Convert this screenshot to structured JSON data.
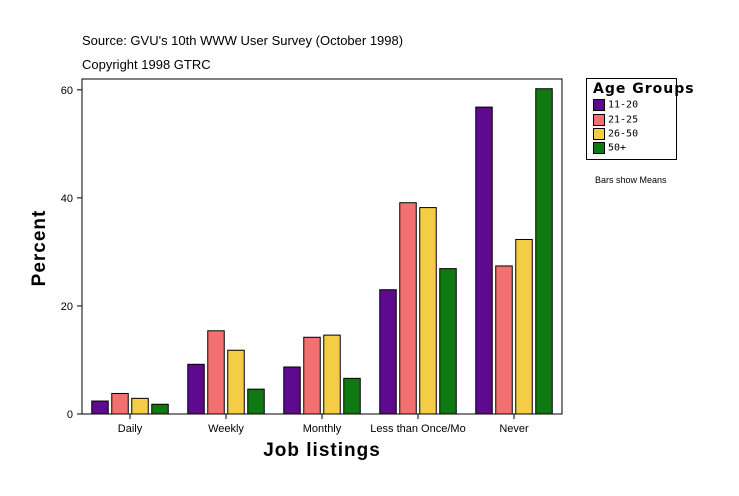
{
  "header": {
    "source": "Source: GVU's 10th WWW User Survey (October 1998)",
    "copyright": "Copyright 1998 GTRC"
  },
  "legend": {
    "title": "Age Groups",
    "items": [
      {
        "label": "11-20",
        "color": "#5e0a8e"
      },
      {
        "label": "21-25",
        "color": "#f27070"
      },
      {
        "label": "26-50",
        "color": "#f5cc45"
      },
      {
        "label": "50+",
        "color": "#107810"
      }
    ]
  },
  "note": "Bars show Means",
  "chart_data": {
    "type": "bar",
    "xlabel": "Job listings",
    "ylabel": "Percent",
    "ylim": [
      0,
      60
    ],
    "yticks": [
      0,
      20,
      40,
      60
    ],
    "categories": [
      "Daily",
      "Weekly",
      "Monthly",
      "Less than Once/Mo",
      "Never"
    ],
    "series": [
      {
        "name": "11-20",
        "color": "#5e0a8e",
        "values": [
          2.4,
          9.2,
          8.7,
          23.0,
          56.8
        ]
      },
      {
        "name": "21-25",
        "color": "#f27070",
        "values": [
          3.8,
          15.4,
          14.2,
          39.1,
          27.4
        ]
      },
      {
        "name": "26-50",
        "color": "#f5cc45",
        "values": [
          2.9,
          11.8,
          14.6,
          38.2,
          32.3
        ]
      },
      {
        "name": "50+",
        "color": "#107810",
        "values": [
          1.8,
          4.6,
          6.6,
          26.9,
          60.2
        ]
      }
    ]
  }
}
